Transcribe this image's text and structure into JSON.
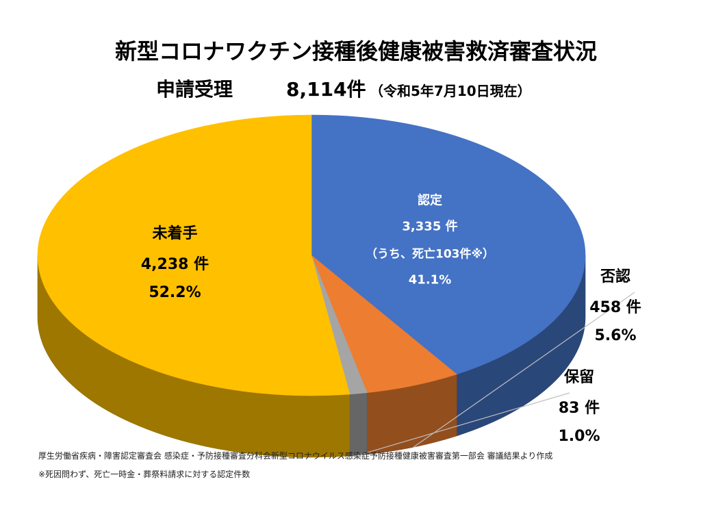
{
  "title": "新型コロナワクチン接種後健康被害救済審査状況",
  "subtitle": {
    "label": "申請受理",
    "total": "8,114件",
    "as_of": "（令和5年7月10日現在）"
  },
  "chart_data": {
    "type": "pie",
    "title": "新型コロナワクチン接種後健康被害救済審査状況",
    "total": 8114,
    "slices": [
      {
        "name": "認定",
        "value": 3335,
        "percent": 41.1,
        "count_label": "3,335 件",
        "pct_label": "41.1%",
        "note": "（うち、死亡103件※）",
        "color": "#4472C4"
      },
      {
        "name": "否認",
        "value": 458,
        "percent": 5.6,
        "count_label": "458 件",
        "pct_label": "5.6%",
        "color": "#ED7D31"
      },
      {
        "name": "保留",
        "value": 83,
        "percent": 1.0,
        "count_label": "83 件",
        "pct_label": "1.0%",
        "color": "#A5A5A5"
      },
      {
        "name": "未着手",
        "value": 4238,
        "percent": 52.2,
        "count_label": "4,238 件",
        "pct_label": "52.2%",
        "color": "#FFC000"
      }
    ]
  },
  "footnotes": {
    "source": "厚生労働省疾病・障害認定審査会 感染症・予防接種審査分科会新型コロナウイルス感染症予防接種健康被害審査第一部会 審議結果より作成",
    "note": "※死因問わず、死亡一時金・葬祭料請求に対する認定件数"
  }
}
